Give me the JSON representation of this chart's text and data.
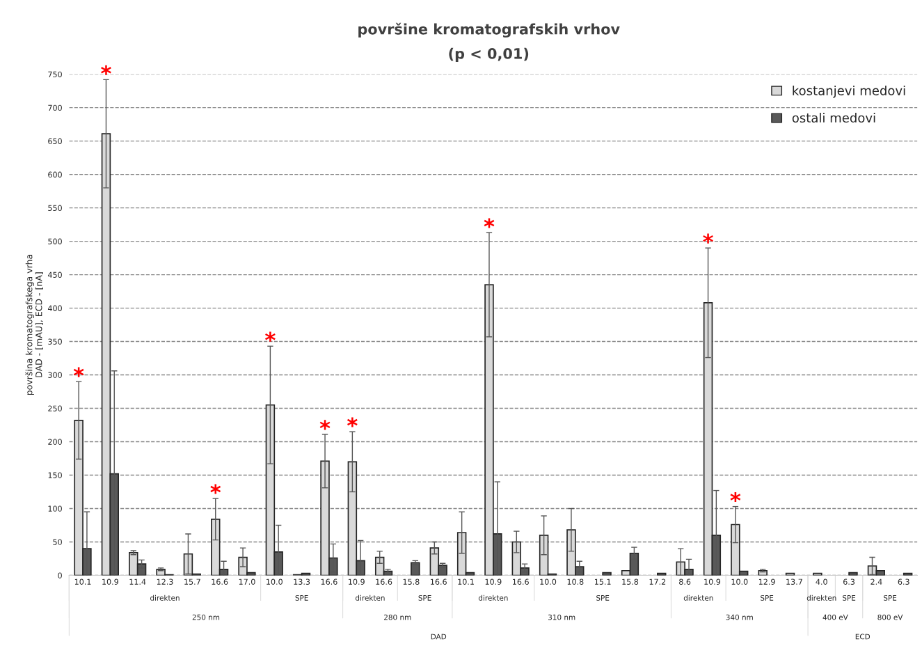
{
  "chart_data": {
    "type": "bar",
    "title": "površine kromatografskih vrhov",
    "subtitle": "(p < 0,01)",
    "ylabel": "površina kromatografskega vrha\nDAD - [mAU], ECD - [nA]",
    "categories": [
      "10.1",
      "10.9",
      "11.4",
      "12.3",
      "15.7",
      "16.6",
      "17.0",
      "10.0",
      "13.3",
      "16.6",
      "10.9",
      "16.6",
      "15.8",
      "16.6",
      "10.1",
      "10.9",
      "16.6",
      "10.0",
      "10.8",
      "15.1",
      "15.8",
      "17.2",
      "8.6",
      "10.9",
      "10.0",
      "12.9",
      "13.7",
      "4.0",
      "6.3",
      "2.4",
      "6.3"
    ],
    "series": [
      {
        "name": "kostanjevi medovi",
        "color": "#d9d9d9",
        "values": [
          232,
          661,
          34,
          9,
          32,
          84,
          27,
          255,
          1,
          171,
          170,
          27,
          null,
          41,
          64,
          435,
          50,
          60,
          68,
          null,
          7,
          null,
          20,
          408,
          76,
          7,
          3,
          3,
          null,
          14,
          null
        ],
        "errors": [
          58,
          81,
          3,
          2,
          30,
          31,
          14,
          88,
          null,
          40,
          45,
          9,
          null,
          9,
          31,
          78,
          16,
          29,
          32,
          null,
          null,
          null,
          20,
          82,
          27,
          2,
          null,
          null,
          null,
          13,
          null
        ],
        "value_labels": [
          "*",
          "*",
          null,
          null,
          null,
          "*",
          null,
          "*",
          null,
          "*",
          "*",
          null,
          null,
          null,
          null,
          "*",
          null,
          null,
          null,
          null,
          null,
          null,
          null,
          "*",
          "*",
          null,
          null,
          null,
          null,
          null,
          null
        ]
      },
      {
        "name": "ostali medovi",
        "color": "#595959",
        "values": [
          40,
          152,
          17,
          1,
          2,
          9,
          4,
          35,
          3,
          26,
          22,
          6,
          19,
          15,
          4,
          62,
          11,
          2,
          13,
          4,
          33,
          3,
          9,
          60,
          6,
          null,
          null,
          null,
          4,
          7,
          3
        ],
        "errors": [
          55,
          154,
          6,
          null,
          null,
          12,
          null,
          40,
          null,
          21,
          30,
          3,
          3,
          3,
          null,
          78,
          6,
          null,
          8,
          null,
          9,
          null,
          15,
          67,
          null,
          null,
          null,
          null,
          null,
          null,
          null
        ]
      }
    ],
    "ylim": [
      0,
      750
    ],
    "yticks": [
      0,
      50,
      100,
      150,
      200,
      250,
      300,
      350,
      400,
      450,
      500,
      550,
      600,
      650,
      700,
      750
    ],
    "grid": "y",
    "line_style": "dashed",
    "legend": "top right",
    "annotations": [
      "direkten",
      "SPE",
      "direkten",
      "SPE",
      "direkten",
      "SPE",
      "direkten",
      "SPE",
      "direkten",
      "SPE",
      "SPE",
      "250 nm",
      "280 nm",
      "310 nm",
      "340 nm",
      "400 eV",
      "800 eV",
      "DAD",
      "ECD"
    ]
  }
}
